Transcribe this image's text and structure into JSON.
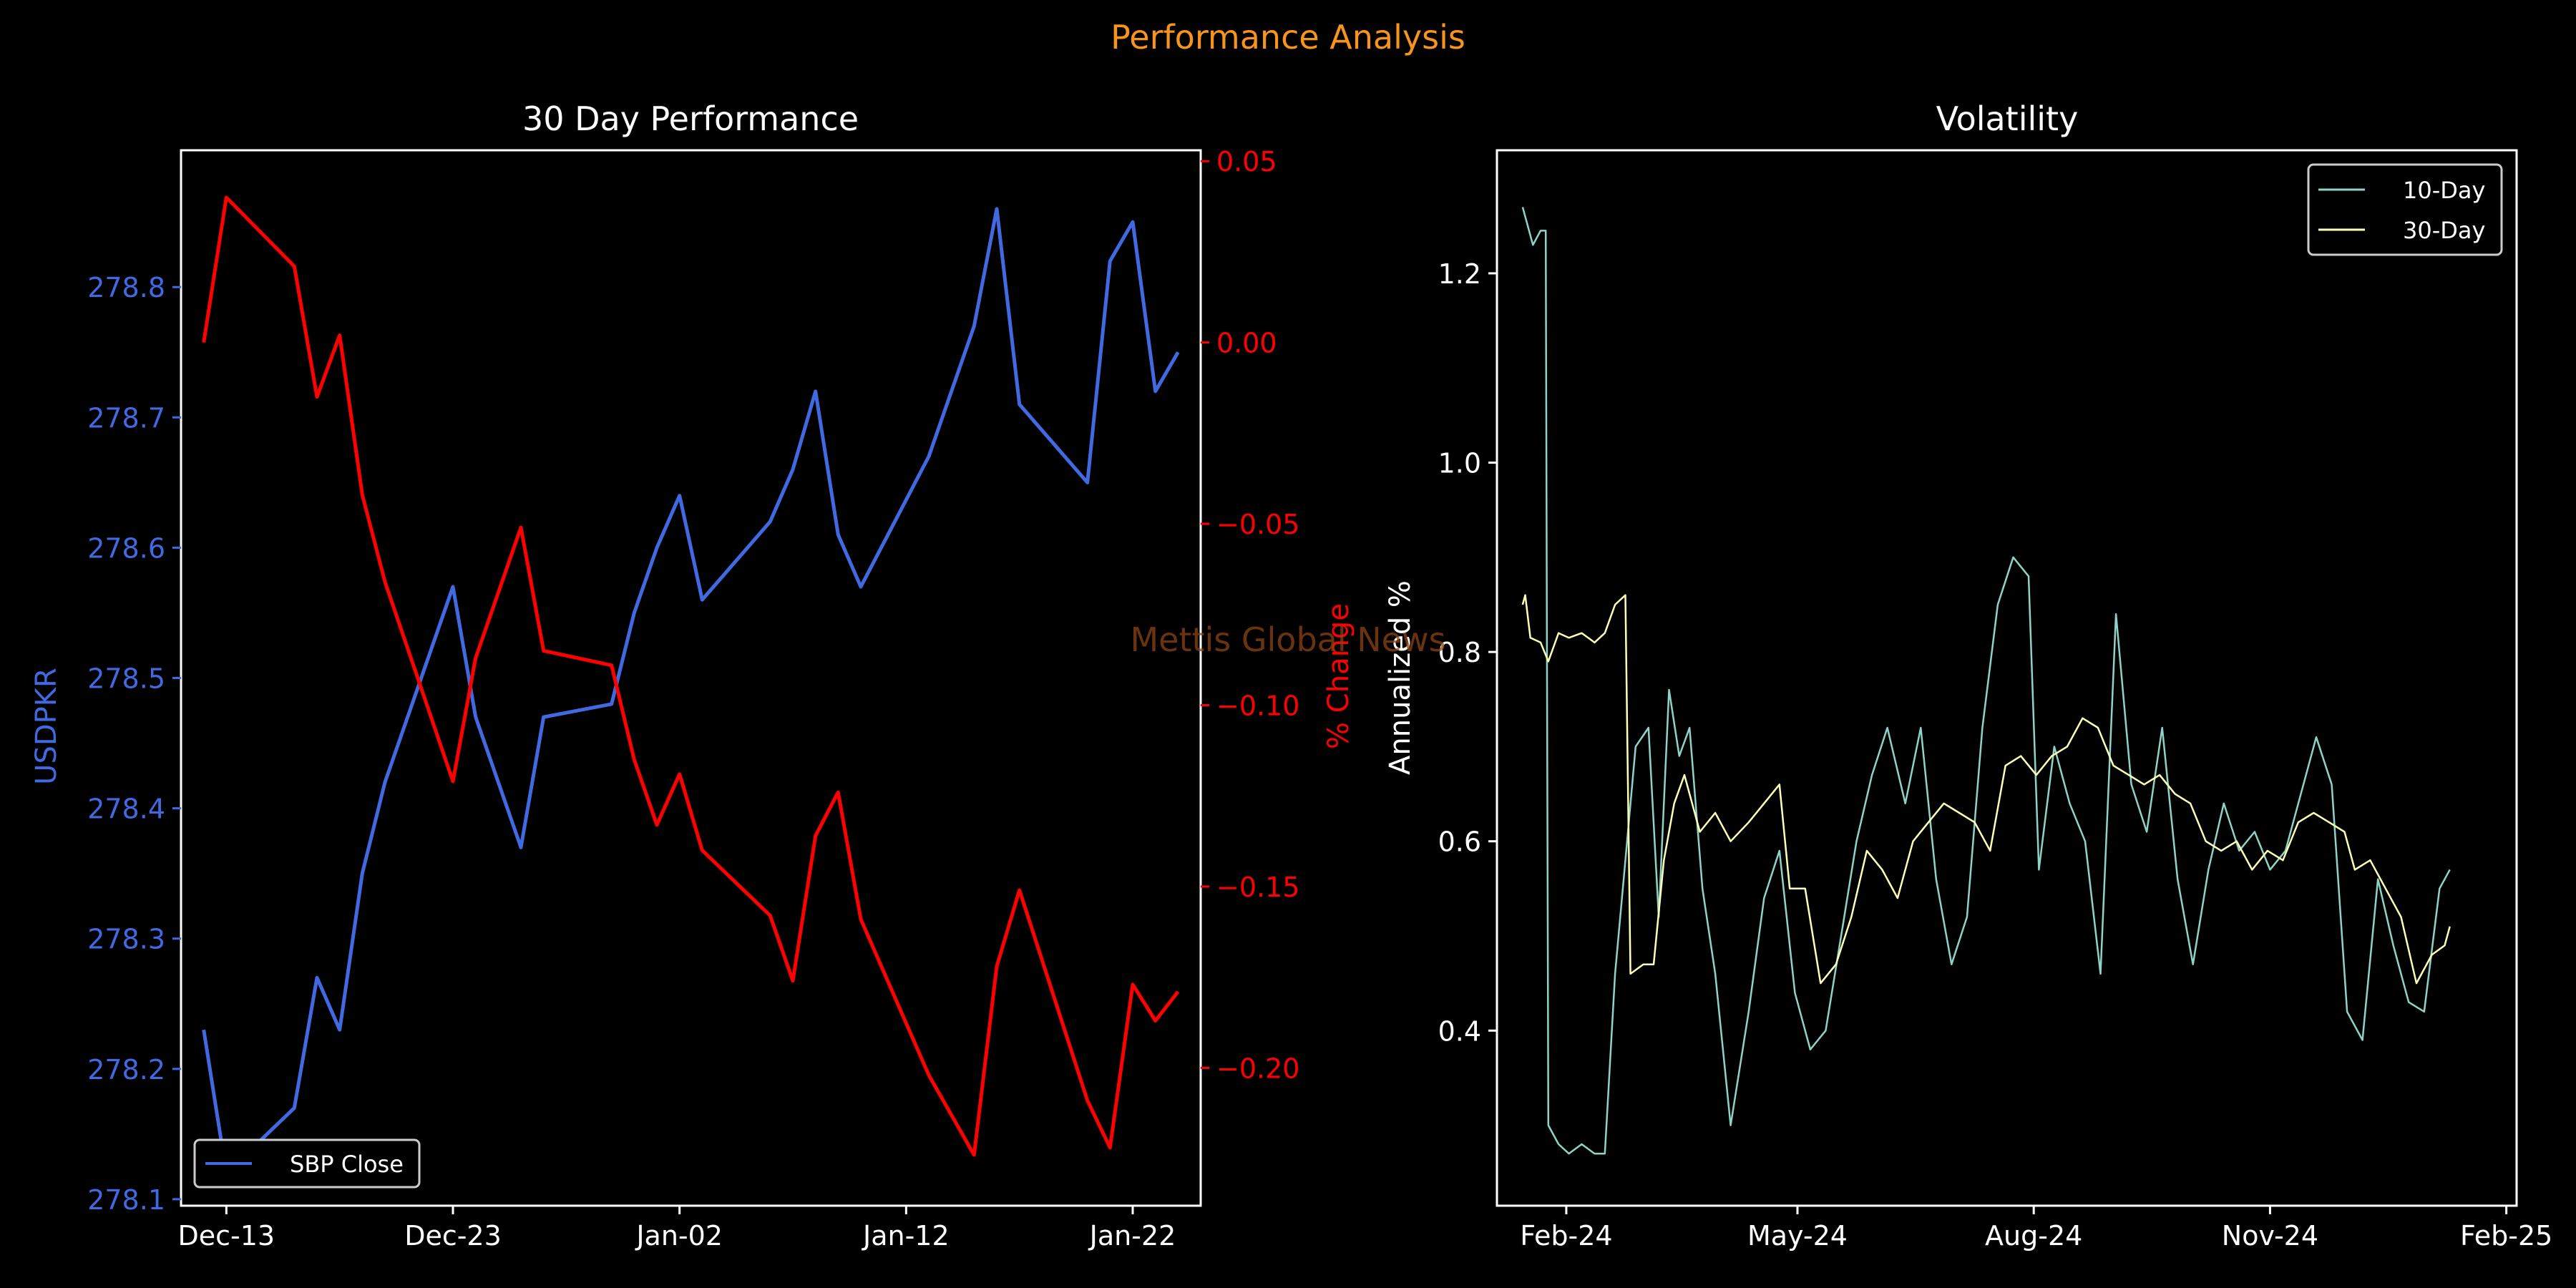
{
  "figure": {
    "suptitle": "Performance Analysis",
    "watermark": "Mettis Global News",
    "colors": {
      "background": "#000000",
      "suptitle": "#f7941d",
      "price": "#4169e1",
      "pct_change": "#ff0000",
      "vol10": "#8dd3c7",
      "vol30": "#ffffb3",
      "axes": "#ffffff",
      "watermark": "#8b4513"
    }
  },
  "chart_data": [
    {
      "type": "line",
      "title": "30 Day Performance",
      "xlabel": "",
      "x_ticks": [
        "Dec-13",
        "Dec-23",
        "Jan-02",
        "Jan-12",
        "Jan-22"
      ],
      "left_axis": {
        "label": "USDPKR",
        "ylim": [
          278.095,
          278.905
        ],
        "ticks": [
          "278.1",
          "278.2",
          "278.3",
          "278.4",
          "278.5",
          "278.6",
          "278.7",
          "278.8"
        ]
      },
      "right_axis": {
        "label": "% Change",
        "ylim": [
          -0.238,
          0.053
        ],
        "ticks": [
          "0.05",
          "0.00",
          "−0.05",
          "−0.10",
          "−0.15",
          "−0.20"
        ]
      },
      "legend": {
        "position": "lower-left",
        "entries": [
          "SBP Close"
        ]
      },
      "x": [
        "2024-12-12",
        "2024-12-13",
        "2024-12-16",
        "2024-12-17",
        "2024-12-18",
        "2024-12-19",
        "2024-12-20",
        "2024-12-23",
        "2024-12-24",
        "2024-12-26",
        "2024-12-27",
        "2024-12-30",
        "2024-12-31",
        "2025-01-01",
        "2025-01-02",
        "2025-01-03",
        "2025-01-06",
        "2025-01-07",
        "2025-01-08",
        "2025-01-09",
        "2025-01-10",
        "2025-01-13",
        "2025-01-15",
        "2025-01-16",
        "2025-01-17",
        "2025-01-20",
        "2025-01-21",
        "2025-01-22",
        "2025-01-23",
        "2025-01-24"
      ],
      "series": [
        {
          "name": "SBP Close",
          "axis": "left",
          "values": [
            278.23,
            278.12,
            278.17,
            278.27,
            278.23,
            278.35,
            278.42,
            278.57,
            278.47,
            278.37,
            278.47,
            278.48,
            278.55,
            278.6,
            278.64,
            278.56,
            278.62,
            278.66,
            278.72,
            278.61,
            278.57,
            278.67,
            278.77,
            278.86,
            278.71,
            278.65,
            278.82,
            278.85,
            278.72,
            278.75
          ]
        },
        {
          "axis": "right",
          "values": [
            0.0,
            0.04,
            0.021,
            -0.015,
            0.002,
            -0.042,
            -0.066,
            -0.121,
            -0.087,
            -0.051,
            -0.085,
            -0.089,
            -0.115,
            -0.133,
            -0.119,
            -0.14,
            -0.158,
            -0.176,
            -0.136,
            -0.124,
            -0.159,
            -0.202,
            -0.224,
            -0.172,
            -0.151,
            -0.209,
            -0.222,
            -0.177,
            -0.187,
            -0.179
          ]
        }
      ]
    },
    {
      "type": "line",
      "title": "Volatility",
      "xlabel": "",
      "ylabel": "Annualized %",
      "x_ticks": [
        "Feb-24",
        "May-24",
        "Aug-24",
        "Nov-24",
        "Feb-25"
      ],
      "y_ticks": [
        "0.4",
        "0.6",
        "0.8",
        "1.0",
        "1.2"
      ],
      "xlim": [
        "2024-01-05",
        "2025-02-05"
      ],
      "ylim": [
        0.215,
        1.33
      ],
      "legend": {
        "position": "top-right",
        "entries": [
          "10-Day",
          "30-Day"
        ]
      },
      "series": [
        {
          "name": "10-Day",
          "points": [
            [
              "2024-01-15",
              1.27
            ],
            [
              "2024-01-17",
              1.25
            ],
            [
              "2024-01-19",
              1.23
            ],
            [
              "2024-01-22",
              1.245
            ],
            [
              "2024-01-24",
              1.245
            ],
            [
              "2024-01-25",
              0.3
            ],
            [
              "2024-01-29",
              0.28
            ],
            [
              "2024-02-02",
              0.27
            ],
            [
              "2024-02-07",
              0.28
            ],
            [
              "2024-02-12",
              0.27
            ],
            [
              "2024-02-16",
              0.27
            ],
            [
              "2024-02-20",
              0.46
            ],
            [
              "2024-02-24",
              0.58
            ],
            [
              "2024-02-28",
              0.7
            ],
            [
              "2024-03-04",
              0.72
            ],
            [
              "2024-03-08",
              0.52
            ],
            [
              "2024-03-12",
              0.76
            ],
            [
              "2024-03-16",
              0.69
            ],
            [
              "2024-03-20",
              0.72
            ],
            [
              "2024-03-25",
              0.55
            ],
            [
              "2024-03-30",
              0.46
            ],
            [
              "2024-04-05",
              0.3
            ],
            [
              "2024-04-12",
              0.42
            ],
            [
              "2024-04-18",
              0.54
            ],
            [
              "2024-04-24",
              0.59
            ],
            [
              "2024-04-30",
              0.44
            ],
            [
              "2024-05-06",
              0.38
            ],
            [
              "2024-05-12",
              0.4
            ],
            [
              "2024-05-18",
              0.5
            ],
            [
              "2024-05-24",
              0.6
            ],
            [
              "2024-05-30",
              0.67
            ],
            [
              "2024-06-05",
              0.72
            ],
            [
              "2024-06-12",
              0.64
            ],
            [
              "2024-06-18",
              0.72
            ],
            [
              "2024-06-24",
              0.56
            ],
            [
              "2024-06-30",
              0.47
            ],
            [
              "2024-07-06",
              0.52
            ],
            [
              "2024-07-12",
              0.72
            ],
            [
              "2024-07-18",
              0.85
            ],
            [
              "2024-07-24",
              0.9
            ],
            [
              "2024-07-30",
              0.88
            ],
            [
              "2024-08-03",
              0.57
            ],
            [
              "2024-08-09",
              0.7
            ],
            [
              "2024-08-15",
              0.64
            ],
            [
              "2024-08-21",
              0.6
            ],
            [
              "2024-08-27",
              0.46
            ],
            [
              "2024-09-02",
              0.84
            ],
            [
              "2024-09-08",
              0.66
            ],
            [
              "2024-09-14",
              0.61
            ],
            [
              "2024-09-20",
              0.72
            ],
            [
              "2024-09-26",
              0.56
            ],
            [
              "2024-10-02",
              0.47
            ],
            [
              "2024-10-08",
              0.57
            ],
            [
              "2024-10-14",
              0.64
            ],
            [
              "2024-10-20",
              0.59
            ],
            [
              "2024-10-26",
              0.61
            ],
            [
              "2024-11-01",
              0.57
            ],
            [
              "2024-11-07",
              0.59
            ],
            [
              "2024-11-13",
              0.65
            ],
            [
              "2024-11-19",
              0.71
            ],
            [
              "2024-11-25",
              0.66
            ],
            [
              "2024-12-01",
              0.42
            ],
            [
              "2024-12-07",
              0.39
            ],
            [
              "2024-12-13",
              0.56
            ],
            [
              "2024-12-19",
              0.49
            ],
            [
              "2024-12-25",
              0.43
            ],
            [
              "2024-12-31",
              0.42
            ],
            [
              "2025-01-06",
              0.55
            ],
            [
              "2025-01-10",
              0.57
            ]
          ]
        },
        {
          "name": "30-Day",
          "points": [
            [
              "2024-01-15",
              0.85
            ],
            [
              "2024-01-16",
              0.86
            ],
            [
              "2024-01-18",
              0.815
            ],
            [
              "2024-01-22",
              0.81
            ],
            [
              "2024-01-25",
              0.79
            ],
            [
              "2024-01-29",
              0.82
            ],
            [
              "2024-02-02",
              0.815
            ],
            [
              "2024-02-07",
              0.82
            ],
            [
              "2024-02-12",
              0.81
            ],
            [
              "2024-02-16",
              0.82
            ],
            [
              "2024-02-20",
              0.85
            ],
            [
              "2024-02-24",
              0.86
            ],
            [
              "2024-02-26",
              0.46
            ],
            [
              "2024-03-02",
              0.47
            ],
            [
              "2024-03-06",
              0.47
            ],
            [
              "2024-03-10",
              0.58
            ],
            [
              "2024-03-14",
              0.64
            ],
            [
              "2024-03-18",
              0.67
            ],
            [
              "2024-03-24",
              0.61
            ],
            [
              "2024-03-30",
              0.63
            ],
            [
              "2024-04-05",
              0.6
            ],
            [
              "2024-04-12",
              0.62
            ],
            [
              "2024-04-18",
              0.64
            ],
            [
              "2024-04-24",
              0.66
            ],
            [
              "2024-04-28",
              0.55
            ],
            [
              "2024-05-04",
              0.55
            ],
            [
              "2024-05-10",
              0.45
            ],
            [
              "2024-05-16",
              0.47
            ],
            [
              "2024-05-22",
              0.52
            ],
            [
              "2024-05-28",
              0.59
            ],
            [
              "2024-06-03",
              0.57
            ],
            [
              "2024-06-09",
              0.54
            ],
            [
              "2024-06-15",
              0.6
            ],
            [
              "2024-06-21",
              0.62
            ],
            [
              "2024-06-27",
              0.64
            ],
            [
              "2024-07-03",
              0.63
            ],
            [
              "2024-07-09",
              0.62
            ],
            [
              "2024-07-15",
              0.59
            ],
            [
              "2024-07-21",
              0.68
            ],
            [
              "2024-07-27",
              0.69
            ],
            [
              "2024-08-02",
              0.67
            ],
            [
              "2024-08-08",
              0.69
            ],
            [
              "2024-08-14",
              0.7
            ],
            [
              "2024-08-20",
              0.73
            ],
            [
              "2024-08-26",
              0.72
            ],
            [
              "2024-09-01",
              0.68
            ],
            [
              "2024-09-07",
              0.67
            ],
            [
              "2024-09-13",
              0.66
            ],
            [
              "2024-09-19",
              0.67
            ],
            [
              "2024-09-25",
              0.65
            ],
            [
              "2024-10-01",
              0.64
            ],
            [
              "2024-10-07",
              0.6
            ],
            [
              "2024-10-13",
              0.59
            ],
            [
              "2024-10-19",
              0.6
            ],
            [
              "2024-10-25",
              0.57
            ],
            [
              "2024-10-31",
              0.59
            ],
            [
              "2024-11-06",
              0.58
            ],
            [
              "2024-11-12",
              0.62
            ],
            [
              "2024-11-18",
              0.63
            ],
            [
              "2024-11-24",
              0.62
            ],
            [
              "2024-11-30",
              0.61
            ],
            [
              "2024-12-04",
              0.57
            ],
            [
              "2024-12-10",
              0.58
            ],
            [
              "2024-12-16",
              0.55
            ],
            [
              "2024-12-22",
              0.52
            ],
            [
              "2024-12-28",
              0.45
            ],
            [
              "2025-01-03",
              0.48
            ],
            [
              "2025-01-08",
              0.49
            ],
            [
              "2025-01-10",
              0.51
            ]
          ]
        }
      ]
    }
  ]
}
